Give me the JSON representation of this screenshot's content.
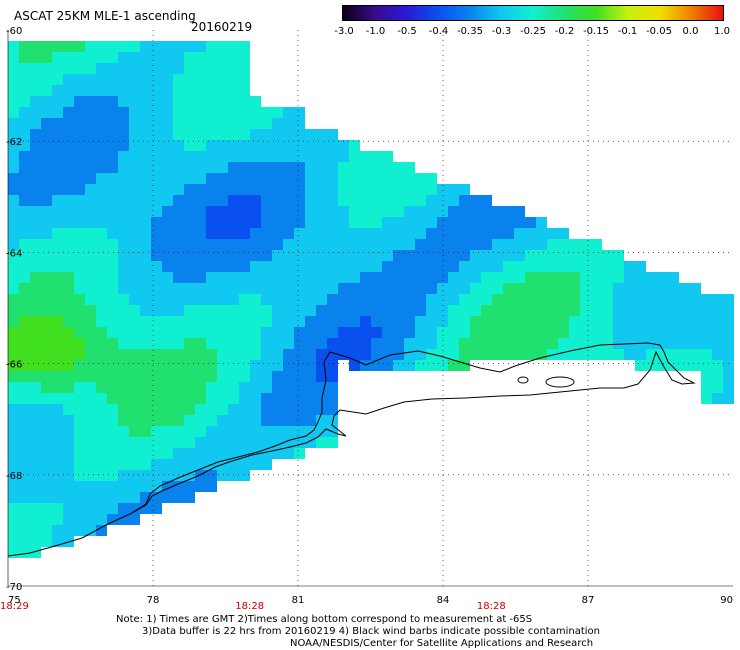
{
  "header": {
    "title": "ASCAT 25KM MLE-1 ascending",
    "date": "20160219"
  },
  "colorbar": {
    "labels": [
      "-3.0",
      "-1.0",
      "-0.5",
      "-0.4",
      "-0.35",
      "-0.3",
      "-0.25",
      "-0.2",
      "-0.15",
      "-0.1",
      "-0.05",
      "0.0",
      "1.0"
    ],
    "colors": [
      "#0a0014",
      "#3a0a8c",
      "#2a1ad8",
      "#0a50ee",
      "#0a82ee",
      "#10c8f0",
      "#10f0d0",
      "#20e070",
      "#40e020",
      "#c8f010",
      "#f0e000",
      "#f08000",
      "#e81010"
    ]
  },
  "map": {
    "lat_labels": [
      "-60",
      "-62",
      "-64",
      "-66",
      "-68",
      "-70"
    ],
    "lon_labels": [
      "75",
      "78",
      "81",
      "84",
      "87",
      "90"
    ],
    "times": [
      "18:29",
      "18:28",
      "18:28"
    ]
  },
  "notes": {
    "line1": "Note: 1) Times are GMT 2)Times along bottom correspond to measurement at -65S",
    "line2": "3)Data buffer is 22 hrs from 20160219 4) Black wind barbs indicate possible contamination",
    "line3": "NOAA/NESDIS/Center for Satellite Applications and Research"
  }
}
